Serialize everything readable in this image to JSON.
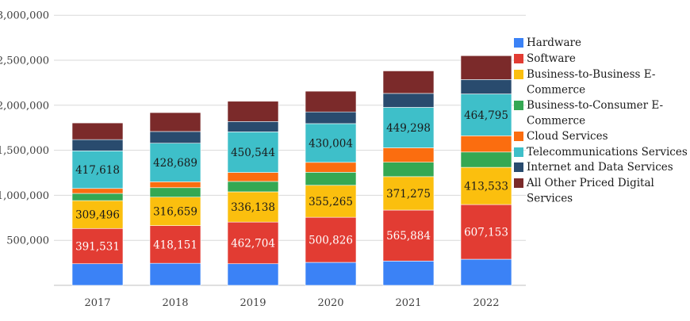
{
  "chart_data": {
    "type": "bar",
    "stacked": true,
    "categories": [
      "2017",
      "2018",
      "2019",
      "2020",
      "2021",
      "2022"
    ],
    "y_tick_labels": [
      {
        "value": 500000,
        "label": "500,000"
      },
      {
        "value": 1000000,
        "label": "1,000,000"
      },
      {
        "value": 1500000,
        "label": "1,500,000"
      },
      {
        "value": 2000000,
        "label": "2,000,000"
      },
      {
        "value": 2500000,
        "label": "2,500,000"
      },
      {
        "value": 3000000,
        "label": "3,000,000"
      }
    ],
    "ylim": [
      0,
      3000000
    ],
    "grid": true,
    "legend_position": "right",
    "series": [
      {
        "name": "Hardware",
        "color": "#3b82f6",
        "values": [
          240000,
          245000,
          240000,
          255000,
          270000,
          290000
        ],
        "labeled": false
      },
      {
        "name": "Software",
        "color": "#e23c33",
        "values": [
          391531,
          418151,
          462704,
          500826,
          565884,
          607153
        ],
        "labeled": true
      },
      {
        "name": "Business-to-Business E-Commerce",
        "color": "#fbbf0e",
        "values": [
          309496,
          316659,
          336138,
          355265,
          371275,
          413533
        ],
        "labeled": true
      },
      {
        "name": "Business-to-Consumer E-Commerce",
        "color": "#34a853",
        "values": [
          80000,
          105000,
          115000,
          145000,
          160000,
          170000
        ],
        "labeled": false
      },
      {
        "name": "Cloud Services",
        "color": "#fb6d0f",
        "values": [
          55000,
          65000,
          100000,
          110000,
          160000,
          180000
        ],
        "labeled": false
      },
      {
        "name": "Telecommunications Services",
        "color": "#3ebfc9",
        "values": [
          417618,
          428689,
          450544,
          430004,
          449298,
          464795
        ],
        "labeled": true
      },
      {
        "name": "Internet and Data Services",
        "color": "#294b6e",
        "values": [
          125000,
          130000,
          115000,
          130000,
          155000,
          160000
        ],
        "labeled": false
      },
      {
        "name": "All Other Priced Digital Services",
        "color": "#7b2a2a",
        "values": [
          185000,
          210000,
          225000,
          230000,
          250000,
          265000
        ],
        "labeled": false
      }
    ]
  }
}
